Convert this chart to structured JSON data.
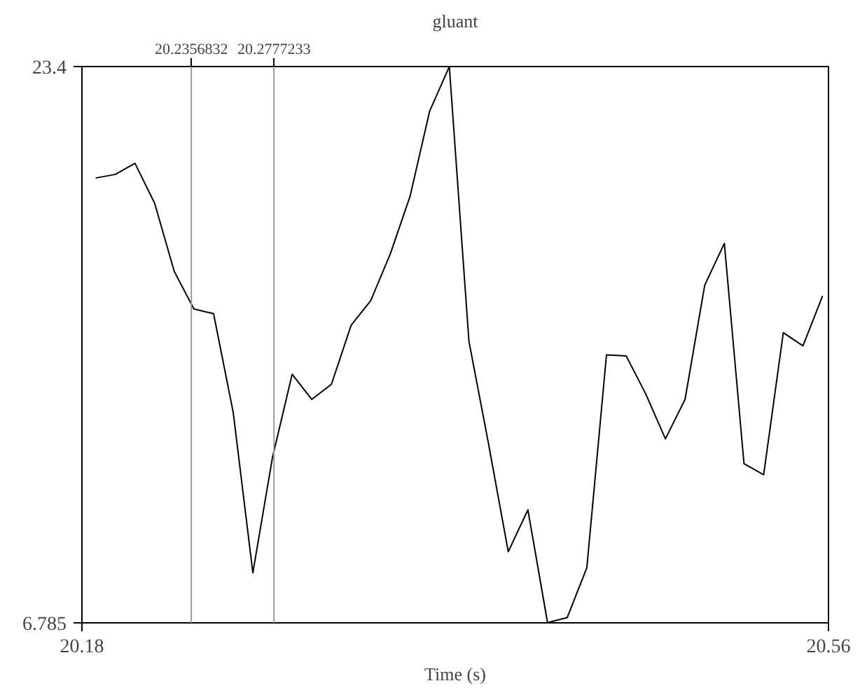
{
  "chart_data": {
    "type": "line",
    "title": "gluant",
    "xlabel": "Time (s)",
    "x": [
      20.187,
      20.197,
      20.207,
      20.217,
      20.227,
      20.237,
      20.247,
      20.257,
      20.267,
      20.277,
      20.287,
      20.297,
      20.307,
      20.317,
      20.327,
      20.337,
      20.347,
      20.357,
      20.367,
      20.377,
      20.387,
      20.397,
      20.407,
      20.417,
      20.427,
      20.437,
      20.447,
      20.457,
      20.467,
      20.477,
      20.487,
      20.497,
      20.507,
      20.517,
      20.527,
      20.537,
      20.547,
      20.557
    ],
    "series": [
      {
        "color": "#000000",
        "values": [
          20.07,
          20.18,
          20.51,
          19.32,
          17.28,
          16.16,
          16.02,
          13.07,
          8.28,
          11.73,
          14.21,
          13.46,
          13.91,
          15.67,
          16.41,
          17.81,
          19.52,
          22.07,
          23.4,
          15.19,
          12.12,
          8.91,
          10.16,
          6.79,
          6.94,
          8.43,
          14.79,
          14.76,
          13.62,
          12.28,
          13.46,
          16.87,
          18.12,
          11.54,
          11.21,
          15.45,
          15.06,
          16.55
        ]
      }
    ],
    "xlim": [
      20.18,
      20.56
    ],
    "xticks": [
      20.18,
      20.56
    ],
    "ylim": [
      6.785,
      23.4
    ],
    "yticks": [
      6.785,
      23.4
    ],
    "x2lim": [
      20.18,
      20.56
    ],
    "x2ticks": [
      20.2356832,
      20.2777233
    ],
    "ref_lines": [
      {
        "axis": "x",
        "value": 20.2356832,
        "color": "#999999"
      },
      {
        "axis": "x",
        "value": 20.2777233,
        "color": "#999999"
      }
    ],
    "marker": "none",
    "line_style": "solid"
  }
}
